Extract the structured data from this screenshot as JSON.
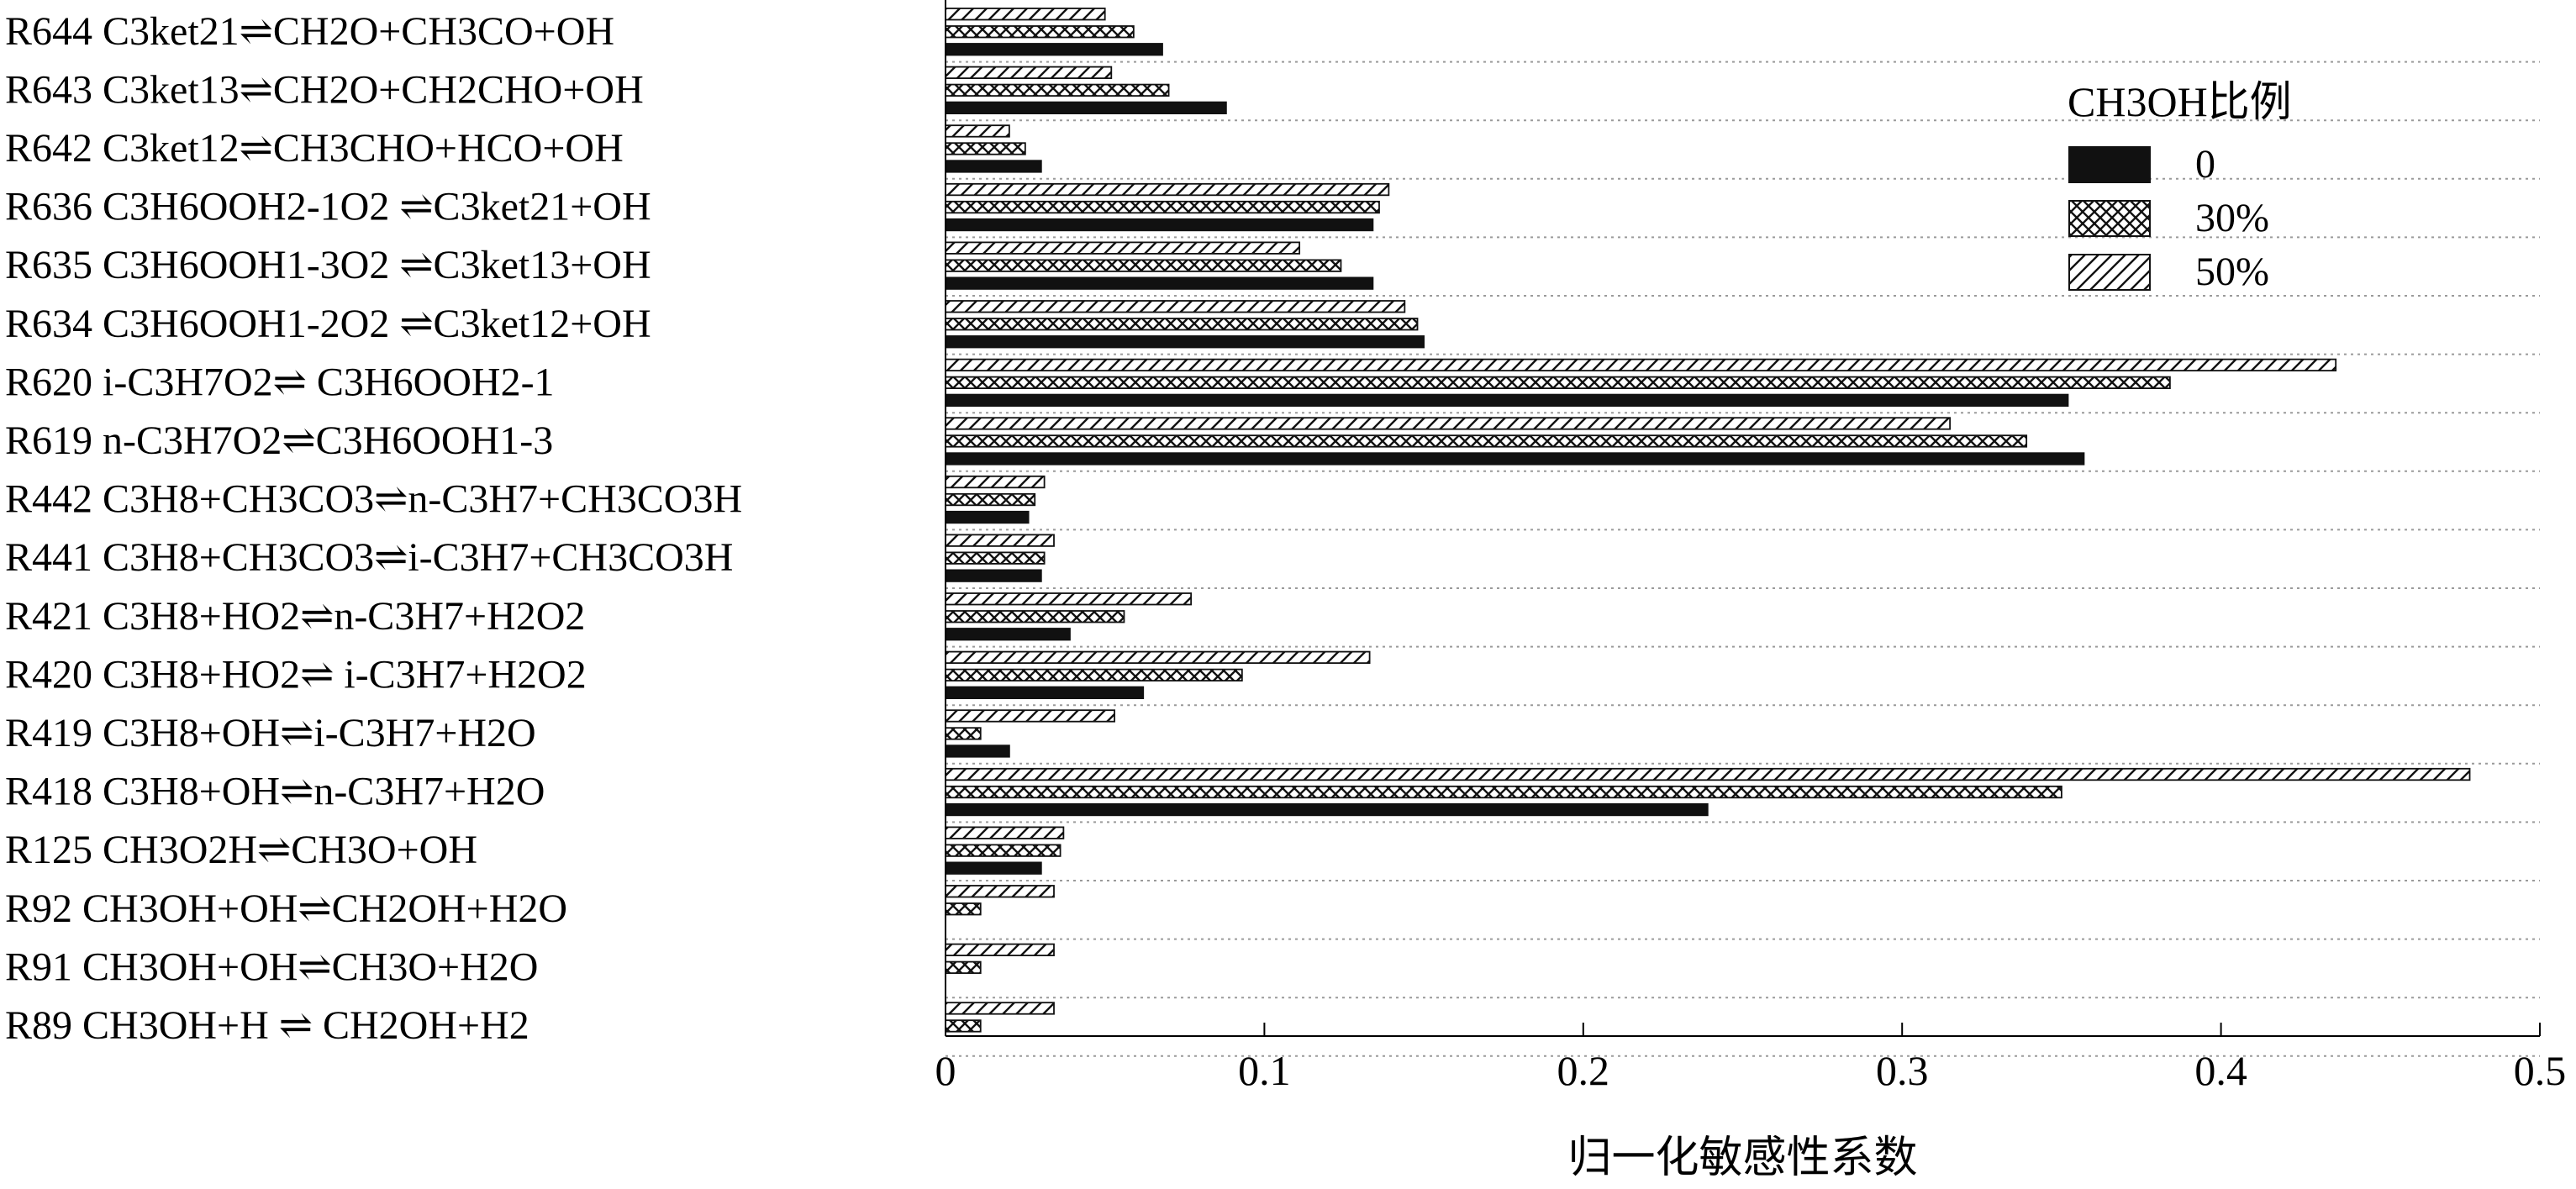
{
  "chart_data": {
    "type": "bar",
    "orientation": "horizontal",
    "title": "",
    "xlabel": "归一化敏感性系数",
    "ylabel": "",
    "xlim": [
      0,
      0.5
    ],
    "xticks": [
      "0",
      "0.1",
      "0.2",
      "0.3",
      "0.4",
      "0.5"
    ],
    "grid": "horizontal dotted separators",
    "legend": {
      "title": "CH3OH比例",
      "position": "top-right"
    },
    "categories": [
      "R644 C3ket21⇌CH2O+CH3CO+OH",
      "R643 C3ket13⇌CH2O+CH2CHO+OH",
      "R642 C3ket12⇌CH3CHO+HCO+OH",
      "R636 C3H6OOH2-1O2 ⇌C3ket21+OH",
      "R635 C3H6OOH1-3O2 ⇌C3ket13+OH",
      "R634 C3H6OOH1-2O2 ⇌C3ket12+OH",
      "R620 i-C3H7O2⇌ C3H6OOH2-1",
      "R619 n-C3H7O2⇌C3H6OOH1-3",
      "R442 C3H8+CH3CO3⇌n-C3H7+CH3CO3H",
      "R441 C3H8+CH3CO3⇌i-C3H7+CH3CO3H",
      "R421 C3H8+HO2⇌n-C3H7+H2O2",
      "R420 C3H8+HO2⇌ i-C3H7+H2O2",
      "R419 C3H8+OH⇌i-C3H7+H2O",
      "R418 C3H8+OH⇌n-C3H7+H2O",
      "R125 CH3O2H⇌CH3O+OH",
      "R92 CH3OH+OH⇌CH2OH+H2O",
      "R91  CH3OH+OH⇌CH3O+H2O",
      "R89 CH3OH+H ⇌ CH2OH+H2"
    ],
    "series": [
      {
        "name": "0",
        "pattern": "solid",
        "color": "#111111",
        "values": [
          0.068,
          0.088,
          0.03,
          0.134,
          0.134,
          0.15,
          0.352,
          0.357,
          0.026,
          0.03,
          0.039,
          0.062,
          0.02,
          0.239,
          0.03,
          0,
          0,
          0
        ]
      },
      {
        "name": "30%",
        "pattern": "crosshatch",
        "color": "#111111",
        "values": [
          0.059,
          0.07,
          0.025,
          0.136,
          0.124,
          0.148,
          0.384,
          0.339,
          0.028,
          0.031,
          0.056,
          0.093,
          0.011,
          0.35,
          0.036,
          0.011,
          0.011,
          0.011
        ]
      },
      {
        "name": "50%",
        "pattern": "diagonal",
        "color": "#111111",
        "values": [
          0.05,
          0.052,
          0.02,
          0.139,
          0.111,
          0.144,
          0.436,
          0.315,
          0.031,
          0.034,
          0.077,
          0.133,
          0.053,
          0.478,
          0.037,
          0.034,
          0.034,
          0.034
        ]
      }
    ]
  }
}
